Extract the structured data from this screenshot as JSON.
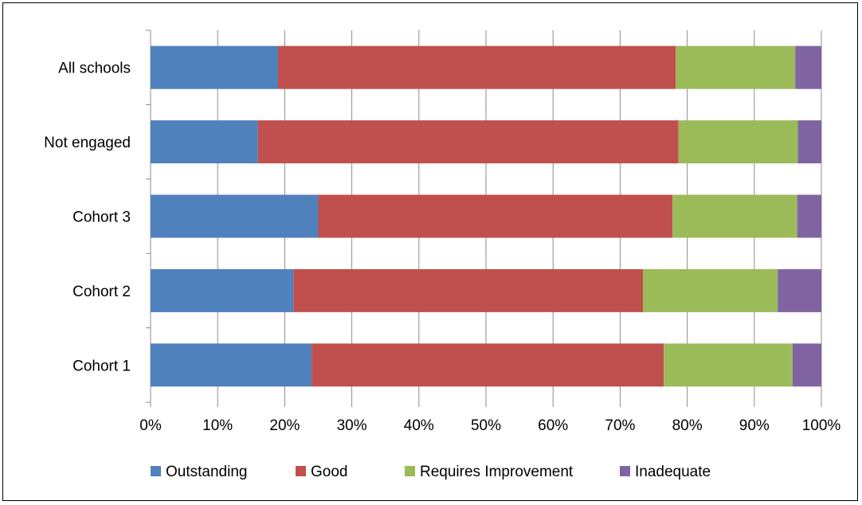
{
  "chart_data": {
    "type": "bar",
    "orientation": "horizontal",
    "stacked": "percent",
    "categories": [
      "All schools",
      "Not engaged",
      "Cohort 3",
      "Cohort 2",
      "Cohort 1"
    ],
    "series": [
      {
        "name": "Outstanding",
        "color": "#4F81BD",
        "values": [
          19,
          16,
          25,
          21.3,
          24
        ]
      },
      {
        "name": "Good",
        "color": "#C0504D",
        "values": [
          59.3,
          62.7,
          52.8,
          52.1,
          52.5
        ]
      },
      {
        "name": "Requires Improvement",
        "color": "#9BBB59",
        "values": [
          17.8,
          17.8,
          18.6,
          20.1,
          19.2
        ]
      },
      {
        "name": "Inadequate",
        "color": "#8064A2",
        "values": [
          3.9,
          3.5,
          3.6,
          6.5,
          4.3
        ]
      }
    ],
    "xlim": [
      0,
      100
    ],
    "x_ticks": [
      "0%",
      "10%",
      "20%",
      "30%",
      "40%",
      "50%",
      "60%",
      "70%",
      "80%",
      "90%",
      "100%"
    ],
    "grid": "vertical",
    "legend": "bottom",
    "title": "",
    "xlabel": "",
    "ylabel": ""
  }
}
